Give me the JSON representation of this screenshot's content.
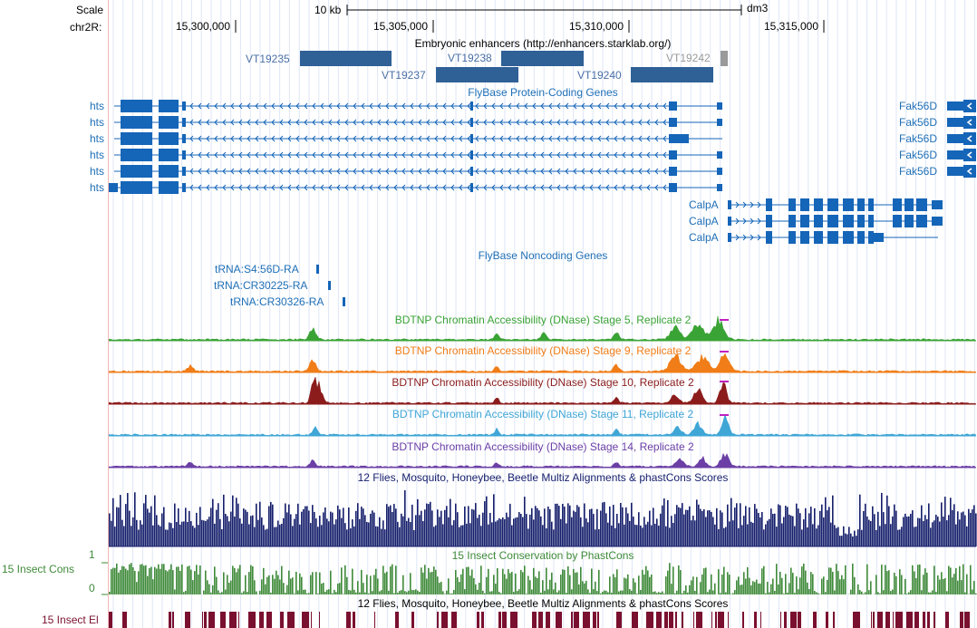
{
  "header": {
    "scale_label": "Scale",
    "scale_bar_label": "10 kb",
    "assembly": "dm3",
    "chrom_label": "chr2R:",
    "coords": [
      "15,300,000",
      "15,305,000",
      "15,310,000",
      "15,315,000"
    ]
  },
  "tracks": {
    "enhancers": {
      "title": "Embryonic enhancers (http://enhancers.starklab.org/)",
      "items": [
        {
          "label": "VT19235",
          "color": "#2f6096"
        },
        {
          "label": "VT19238",
          "color": "#2f6096"
        },
        {
          "label": "VT19242",
          "color": "#9a9a9a"
        },
        {
          "label": "VT19237",
          "color": "#2f6096"
        },
        {
          "label": "VT19240",
          "color": "#2f6096"
        }
      ]
    },
    "flybase_coding": {
      "title": "FlyBase Protein-Coding Genes",
      "color": "#1565b8",
      "genes_left": [
        "hts",
        "hts",
        "hts",
        "hts",
        "hts",
        "hts"
      ],
      "genes_right": [
        "Fak56D",
        "Fak56D",
        "Fak56D",
        "Fak56D",
        "Fak56D"
      ],
      "genes_calpa": [
        "CalpA",
        "CalpA",
        "CalpA"
      ]
    },
    "flybase_noncoding": {
      "title": "FlyBase Noncoding Genes",
      "genes": [
        "tRNA:S4:56D-RA",
        "tRNA:CR30225-RA",
        "tRNA:CR30326-RA"
      ]
    },
    "dnase": [
      {
        "title": "BDTNP Chromatin Accessibility (DNase) Stage 5, Replicate 2",
        "color": "#3aa335"
      },
      {
        "title": "BDTNP Chromatin Accessibility (DNase) Stage 9, Replicate 2",
        "color": "#f07d17"
      },
      {
        "title": "BDTNP Chromatin Accessibility (DNase) Stage 10, Replicate 2",
        "color": "#8c1c1c"
      },
      {
        "title": "BDTNP Chromatin Accessibility (DNase) Stage 11, Replicate 2",
        "color": "#3fa6d6"
      },
      {
        "title": "BDTNP Chromatin Accessibility (DNase) Stage 14, Replicate 2",
        "color": "#6b3fa6"
      }
    ],
    "multiz": {
      "title": "12 Flies, Mosquito, Honeybee, Beetle Multiz Alignments & phastCons Scores",
      "color": "#151e6b"
    },
    "insect_cons": {
      "title": "15 Insect Conservation by PhastCons",
      "left_label": "15 Insect Cons",
      "axis_max": "1",
      "axis_min": "0",
      "color": "#3f8a3a"
    },
    "insect_el": {
      "title": "12 Flies, Mosquito, Honeybee, Beetle Multiz Alignments & phastCons Scores",
      "left_label": "15 Insect El",
      "color": "#7a1030"
    }
  }
}
